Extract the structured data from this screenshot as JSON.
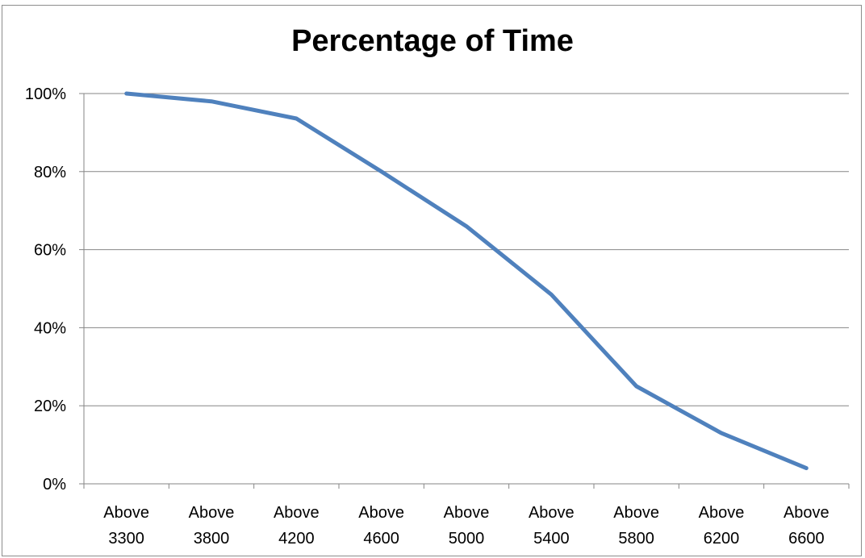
{
  "chart_data": {
    "type": "line",
    "title": "Percentage of Time",
    "xlabel": "",
    "ylabel": "",
    "categories": [
      [
        "Above",
        "3300"
      ],
      [
        "Above",
        "3800"
      ],
      [
        "Above",
        "4200"
      ],
      [
        "Above",
        "4600"
      ],
      [
        "Above",
        "5000"
      ],
      [
        "Above",
        "5400"
      ],
      [
        "Above",
        "5800"
      ],
      [
        "Above",
        "6200"
      ],
      [
        "Above",
        "6600"
      ]
    ],
    "series": [
      {
        "values": [
          100,
          98,
          93.6,
          80,
          66,
          48.5,
          25,
          13,
          4
        ],
        "color": "#4f81bd"
      }
    ],
    "ylim": [
      0,
      100
    ],
    "yticks": [
      "0%",
      "20%",
      "40%",
      "60%",
      "80%",
      "100%"
    ],
    "grid": true,
    "legend": "none"
  }
}
